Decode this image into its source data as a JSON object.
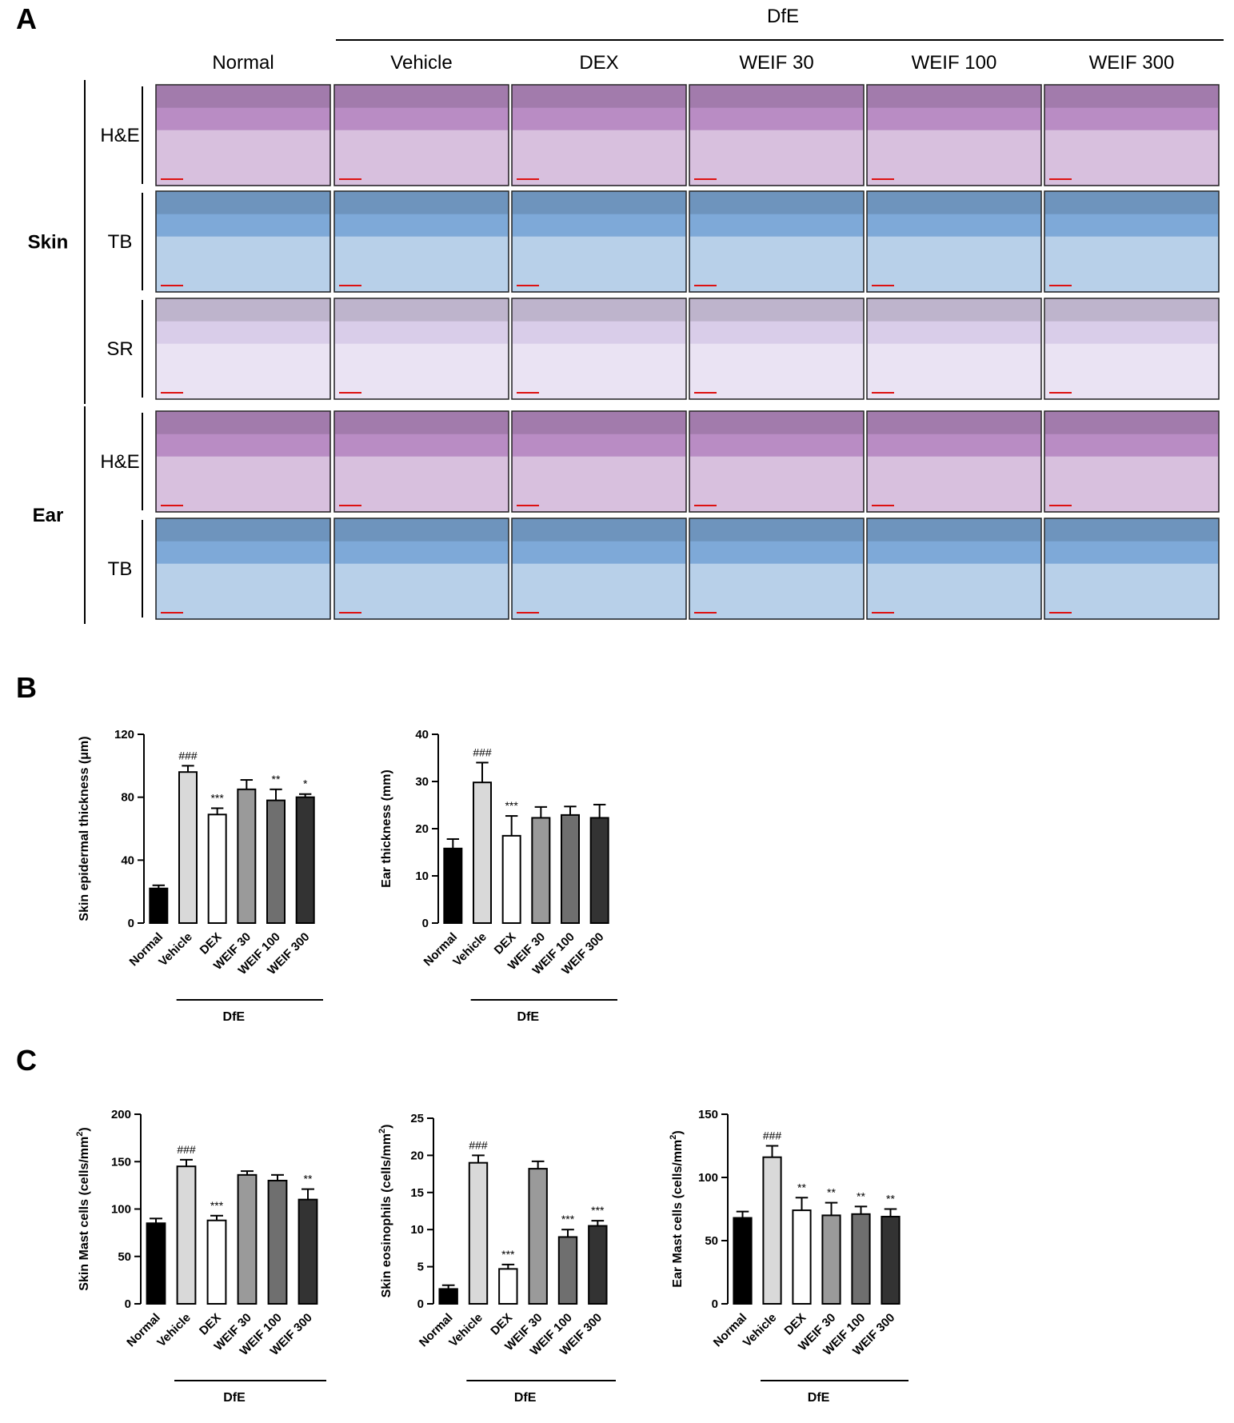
{
  "panels": {
    "a": "A",
    "b": "B",
    "c": "C"
  },
  "histology": {
    "group_label": "DfE",
    "columns": [
      "Normal",
      "Vehicle",
      "DEX",
      "WEIF 30",
      "WEIF 100",
      "WEIF 300"
    ],
    "tissues": [
      {
        "name": "Skin",
        "stains": [
          "H&E",
          "TB",
          "SR"
        ]
      },
      {
        "name": "Ear",
        "stains": [
          "H&E",
          "TB"
        ]
      }
    ],
    "stain_colors": {
      "H&E": "#b98cc4",
      "TB": "#7ea9d8",
      "SR": "#d9cde9"
    }
  },
  "chart_data": [
    {
      "type": "bar",
      "panel": "B",
      "categories": [
        "Normal",
        "Vehicle",
        "DEX",
        "WEIF 30",
        "WEIF 100",
        "WEIF 300"
      ],
      "values": [
        22,
        96,
        69,
        85,
        78,
        80
      ],
      "errors": [
        2,
        4,
        4,
        6,
        7,
        2
      ],
      "significance": [
        "",
        "###",
        "***",
        "",
        "**",
        "*"
      ],
      "ylabel": "Skin epidermal  thickness (μm)",
      "ylim": [
        0,
        120
      ],
      "yticks": [
        0,
        40,
        80,
        120
      ],
      "group_label": "DfE",
      "colors": [
        "#000000",
        "#d9d9d9",
        "#ffffff",
        "#9a9a9a",
        "#6f6f6f",
        "#333333"
      ]
    },
    {
      "type": "bar",
      "panel": "B",
      "categories": [
        "Normal",
        "Vehicle",
        "DEX",
        "WEIF 30",
        "WEIF 100",
        "WEIF 300"
      ],
      "values": [
        15.8,
        29.8,
        18.5,
        22.3,
        22.9,
        22.3
      ],
      "errors": [
        2.0,
        4.2,
        4.2,
        2.3,
        1.8,
        2.8
      ],
      "significance": [
        "",
        "###",
        "***",
        "",
        "",
        ""
      ],
      "ylabel": "Ear thickness (mm)",
      "ylim": [
        0,
        40
      ],
      "yticks": [
        0,
        10,
        20,
        30,
        40
      ],
      "group_label": "DfE",
      "colors": [
        "#000000",
        "#d9d9d9",
        "#ffffff",
        "#9a9a9a",
        "#6f6f6f",
        "#333333"
      ]
    },
    {
      "type": "bar",
      "panel": "C",
      "categories": [
        "Normal",
        "Vehicle",
        "DEX",
        "WEIF 30",
        "WEIF 100",
        "WEIF 300"
      ],
      "values": [
        85,
        145,
        88,
        136,
        130,
        110
      ],
      "errors": [
        5,
        7,
        5,
        4,
        6,
        11
      ],
      "significance": [
        "",
        "###",
        "***",
        "",
        "",
        "**"
      ],
      "ylabel": "Skin Mast cells (cells/mm",
      "ylabel_sup": "2",
      "ylabel_end": ")",
      "ylim": [
        0,
        200
      ],
      "yticks": [
        0,
        50,
        100,
        150,
        200
      ],
      "group_label": "DfE",
      "colors": [
        "#000000",
        "#d9d9d9",
        "#ffffff",
        "#9a9a9a",
        "#6f6f6f",
        "#333333"
      ]
    },
    {
      "type": "bar",
      "panel": "C",
      "categories": [
        "Normal",
        "Vehicle",
        "DEX",
        "WEIF 30",
        "WEIF 100",
        "WEIF 300"
      ],
      "values": [
        2.0,
        19.0,
        4.7,
        18.2,
        9.0,
        10.5
      ],
      "errors": [
        0.5,
        1.0,
        0.6,
        1.0,
        1.0,
        0.7
      ],
      "significance": [
        "",
        "###",
        "***",
        "",
        "***",
        "***"
      ],
      "ylabel": "Skin eosinophils (cells/mm",
      "ylabel_sup": "2",
      "ylabel_end": ")",
      "ylim": [
        0,
        25
      ],
      "yticks": [
        0,
        5,
        10,
        15,
        20,
        25
      ],
      "group_label": "DfE",
      "colors": [
        "#000000",
        "#d9d9d9",
        "#ffffff",
        "#9a9a9a",
        "#6f6f6f",
        "#333333"
      ]
    },
    {
      "type": "bar",
      "panel": "C",
      "categories": [
        "Normal",
        "Vehicle",
        "DEX",
        "WEIF 30",
        "WEIF 100",
        "WEIF 300"
      ],
      "values": [
        68,
        116,
        74,
        70,
        71,
        69
      ],
      "errors": [
        5,
        9,
        10,
        10,
        6,
        6
      ],
      "significance": [
        "",
        "###",
        "**",
        "**",
        "**",
        "**"
      ],
      "ylabel": "Ear Mast cells (cells/mm",
      "ylabel_sup": "2",
      "ylabel_end": ")",
      "ylim": [
        0,
        150
      ],
      "yticks": [
        0,
        50,
        100,
        150
      ],
      "group_label": "DfE",
      "colors": [
        "#000000",
        "#d9d9d9",
        "#ffffff",
        "#9a9a9a",
        "#6f6f6f",
        "#333333"
      ]
    }
  ]
}
